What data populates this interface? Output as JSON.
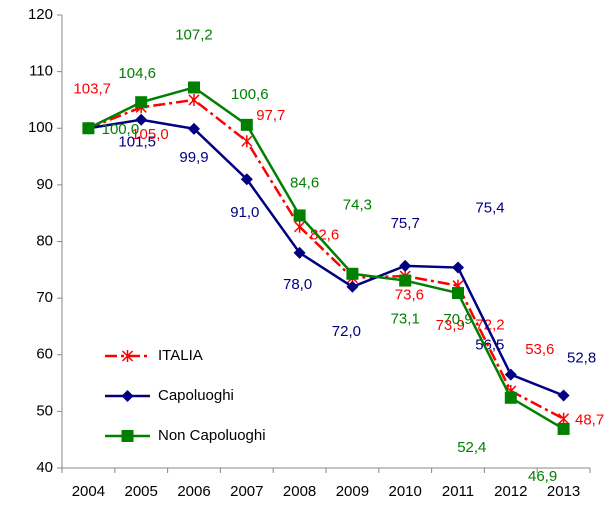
{
  "chart_data": {
    "type": "line",
    "categories": [
      "2004",
      "2005",
      "2006",
      "2007",
      "2008",
      "2009",
      "2010",
      "2011",
      "2012",
      "2013"
    ],
    "ylim": [
      40,
      120
    ],
    "yticks": [
      40,
      50,
      60,
      70,
      80,
      90,
      100,
      110,
      120
    ],
    "legend": "lower-left",
    "series": [
      {
        "name": "ITALIA",
        "color": "#ff0000",
        "marker": "asterisk",
        "linestyle": "dashdot",
        "values": [
          100.0,
          103.7,
          105.0,
          97.7,
          82.6,
          73.6,
          73.9,
          72.2,
          53.6,
          48.7
        ],
        "value_labels": [
          null,
          "103,7",
          "105,0",
          "97,7",
          "82,6",
          "73,6",
          "73,9",
          "72,2",
          "53,6",
          "48,7"
        ]
      },
      {
        "name": "Capoluoghi",
        "color": "#000080",
        "marker": "diamond",
        "linestyle": "solid",
        "values": [
          100.0,
          101.5,
          99.9,
          91.0,
          78.0,
          72.0,
          75.7,
          75.4,
          56.5,
          52.8
        ],
        "value_labels": [
          null,
          "101,5",
          "99,9",
          "91,0",
          "78,0",
          "72,0",
          "75,7",
          "75,4",
          "56,5",
          "52,8"
        ]
      },
      {
        "name": "Non Capoluoghi",
        "color": "#008000",
        "marker": "square",
        "linestyle": "solid",
        "values": [
          100.0,
          104.6,
          107.2,
          100.6,
          84.6,
          74.3,
          73.1,
          70.9,
          52.4,
          46.9
        ],
        "value_labels": [
          "100,0",
          "104,6",
          "107,2",
          "100,6",
          "84,6",
          "74,3",
          "73,1",
          "70,9",
          "52,4",
          "46,9"
        ]
      }
    ]
  }
}
